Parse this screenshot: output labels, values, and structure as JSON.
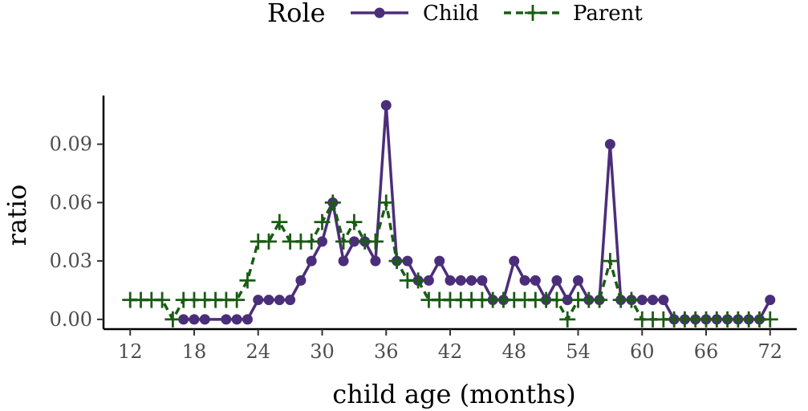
{
  "chart_data": {
    "type": "line",
    "title": "",
    "xlabel": "child age (months)",
    "ylabel": "ratio",
    "xlim": [
      9.5,
      74.5
    ],
    "ylim": [
      -0.005,
      0.115
    ],
    "x_ticks": [
      12,
      18,
      24,
      30,
      36,
      42,
      48,
      54,
      60,
      66,
      72
    ],
    "x_tick_labels": [
      "12",
      "18",
      "24",
      "30",
      "36",
      "42",
      "48",
      "54",
      "60",
      "66",
      "72"
    ],
    "y_ticks": [
      0,
      0.03,
      0.06,
      0.09
    ],
    "y_tick_labels": [
      "0.00",
      "0.03",
      "0.06",
      "0.09"
    ],
    "grid": false,
    "legend": {
      "title": "Role",
      "position": "top"
    },
    "series": [
      {
        "name": "Child",
        "color": "#4b2e7a",
        "line": "solid",
        "marker": "circle",
        "points": [
          [
            17,
            0
          ],
          [
            18,
            0
          ],
          [
            19,
            0
          ],
          [
            21,
            0
          ],
          [
            22,
            0
          ],
          [
            23,
            0
          ],
          [
            24,
            0.01
          ],
          [
            25,
            0.01
          ],
          [
            26,
            0.01
          ],
          [
            27,
            0.01
          ],
          [
            28,
            0.02
          ],
          [
            29,
            0.03
          ],
          [
            30,
            0.04
          ],
          [
            31,
            0.06
          ],
          [
            32,
            0.03
          ],
          [
            33,
            0.04
          ],
          [
            34,
            0.04
          ],
          [
            35,
            0.03
          ],
          [
            36,
            0.11
          ],
          [
            37,
            0.03
          ],
          [
            38,
            0.03
          ],
          [
            39,
            0.02
          ],
          [
            40,
            0.02
          ],
          [
            41,
            0.03
          ],
          [
            42,
            0.02
          ],
          [
            43,
            0.02
          ],
          [
            44,
            0.02
          ],
          [
            45,
            0.02
          ],
          [
            46,
            0.01
          ],
          [
            47,
            0.01
          ],
          [
            48,
            0.03
          ],
          [
            49,
            0.02
          ],
          [
            50,
            0.02
          ],
          [
            51,
            0.01
          ],
          [
            52,
            0.02
          ],
          [
            53,
            0.01
          ],
          [
            54,
            0.02
          ],
          [
            55,
            0.01
          ],
          [
            56,
            0.01
          ],
          [
            57,
            0.09
          ],
          [
            58,
            0.01
          ],
          [
            59,
            0.01
          ],
          [
            60,
            0.01
          ],
          [
            61,
            0.01
          ],
          [
            62,
            0.01
          ],
          [
            63,
            0
          ],
          [
            64,
            0
          ],
          [
            65,
            0
          ],
          [
            66,
            0
          ],
          [
            67,
            0
          ],
          [
            68,
            0
          ],
          [
            69,
            0
          ],
          [
            70,
            0
          ],
          [
            71,
            0
          ],
          [
            72,
            0.01
          ]
        ]
      },
      {
        "name": "Parent",
        "color": "#1a5c14",
        "line": "dashed",
        "marker": "plus",
        "points": [
          [
            12,
            0.01
          ],
          [
            13,
            0.01
          ],
          [
            14,
            0.01
          ],
          [
            15,
            0.01
          ],
          [
            16,
            0
          ],
          [
            17,
            0.01
          ],
          [
            18,
            0.01
          ],
          [
            19,
            0.01
          ],
          [
            20,
            0.01
          ],
          [
            21,
            0.01
          ],
          [
            22,
            0.01
          ],
          [
            23,
            0.02
          ],
          [
            24,
            0.04
          ],
          [
            25,
            0.04
          ],
          [
            26,
            0.05
          ],
          [
            27,
            0.04
          ],
          [
            28,
            0.04
          ],
          [
            29,
            0.04
          ],
          [
            30,
            0.05
          ],
          [
            31,
            0.06
          ],
          [
            32,
            0.04
          ],
          [
            33,
            0.05
          ],
          [
            34,
            0.04
          ],
          [
            35,
            0.04
          ],
          [
            36,
            0.06
          ],
          [
            37,
            0.03
          ],
          [
            38,
            0.02
          ],
          [
            39,
            0.02
          ],
          [
            40,
            0.01
          ],
          [
            41,
            0.01
          ],
          [
            42,
            0.01
          ],
          [
            43,
            0.01
          ],
          [
            44,
            0.01
          ],
          [
            45,
            0.01
          ],
          [
            46,
            0.01
          ],
          [
            47,
            0.01
          ],
          [
            48,
            0.01
          ],
          [
            49,
            0.01
          ],
          [
            50,
            0.01
          ],
          [
            51,
            0.01
          ],
          [
            52,
            0.01
          ],
          [
            53,
            0
          ],
          [
            54,
            0.01
          ],
          [
            55,
            0.01
          ],
          [
            56,
            0.01
          ],
          [
            57,
            0.03
          ],
          [
            58,
            0.01
          ],
          [
            59,
            0.01
          ],
          [
            60,
            0
          ],
          [
            61,
            0
          ],
          [
            62,
            0
          ],
          [
            63,
            0
          ],
          [
            64,
            0
          ],
          [
            65,
            0
          ],
          [
            66,
            0
          ],
          [
            67,
            0
          ],
          [
            68,
            0
          ],
          [
            69,
            0
          ],
          [
            70,
            0
          ],
          [
            71,
            0
          ],
          [
            72,
            0
          ]
        ]
      }
    ]
  }
}
